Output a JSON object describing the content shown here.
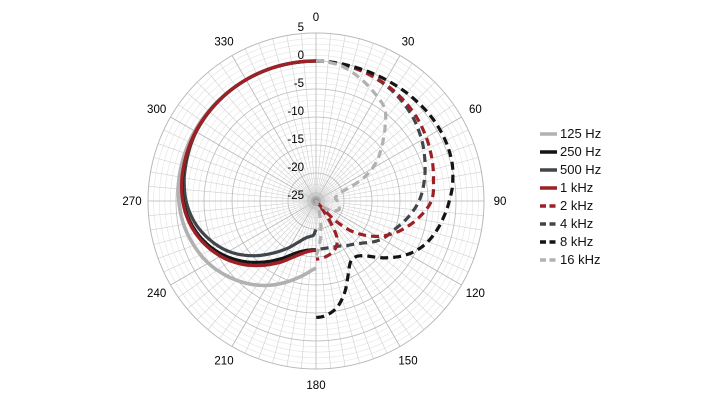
{
  "chart_data": {
    "type": "line",
    "subtype": "polar-pattern",
    "title": "",
    "orientation": {
      "zero_position": "top",
      "direction": "clockwise"
    },
    "angle_tick_labels": [
      "0",
      "30",
      "60",
      "90",
      "120",
      "150",
      "180",
      "210",
      "240",
      "270",
      "300",
      "330"
    ],
    "angle_tick_step_deg": 30,
    "minor_spoke_step_deg": 5,
    "radial_axis": {
      "unit": "dB",
      "tick_labels": [
        "5",
        "0",
        "-5",
        "-10",
        "-15",
        "-20",
        "-25"
      ],
      "outer_db": 5,
      "center_db": -25,
      "major_ring_step_db": 5,
      "minor_ring_step_db": 1
    },
    "legend_position": "right",
    "style": {
      "grid_minor_color": "#e4e4e4",
      "grid_major_color": "#b9b9b9",
      "spoke_color": "#cfcfcf",
      "spoke_major_color": "#b5b5b5",
      "label_color": "#000000",
      "background": "#ffffff"
    },
    "series": [
      {
        "name": "125 Hz",
        "color": "#b1b1b1",
        "line_style": "solid",
        "width": 3.6,
        "plotted_half": "left",
        "points": [
          [
            0,
            0
          ],
          [
            30,
            0
          ],
          [
            60,
            0
          ],
          [
            80,
            -0.2
          ],
          [
            90,
            -0.5
          ],
          [
            100,
            -1
          ],
          [
            110,
            -1.8
          ],
          [
            120,
            -2.8
          ],
          [
            130,
            -4.2
          ],
          [
            140,
            -5.8
          ],
          [
            150,
            -7.6
          ],
          [
            160,
            -9.6
          ],
          [
            170,
            -11.5
          ],
          [
            180,
            -13
          ]
        ]
      },
      {
        "name": "250 Hz",
        "color": "#141414",
        "line_style": "solid",
        "width": 3.2,
        "plotted_half": "left",
        "points": [
          [
            0,
            0
          ],
          [
            30,
            0
          ],
          [
            60,
            -0.2
          ],
          [
            80,
            -0.8
          ],
          [
            90,
            -1.3
          ],
          [
            100,
            -2.3
          ],
          [
            110,
            -3.8
          ],
          [
            120,
            -5.8
          ],
          [
            130,
            -8.2
          ],
          [
            140,
            -10.8
          ],
          [
            150,
            -13.2
          ],
          [
            158,
            -14.9
          ],
          [
            166,
            -15.8
          ],
          [
            173,
            -16.2
          ],
          [
            180,
            -16.3
          ]
        ]
      },
      {
        "name": "500 Hz",
        "color": "#41464b",
        "line_style": "solid",
        "width": 3.2,
        "plotted_half": "left",
        "points": [
          [
            0,
            0
          ],
          [
            30,
            0
          ],
          [
            60,
            -0.3
          ],
          [
            80,
            -1.1
          ],
          [
            90,
            -1.8
          ],
          [
            100,
            -3
          ],
          [
            110,
            -4.8
          ],
          [
            120,
            -7
          ],
          [
            130,
            -9.8
          ],
          [
            140,
            -12.8
          ],
          [
            150,
            -15.4
          ],
          [
            158,
            -17.2
          ],
          [
            165,
            -18.2
          ],
          [
            171,
            -18.6
          ],
          [
            176,
            -18.9
          ],
          [
            180,
            -19.9
          ]
        ]
      },
      {
        "name": "1 kHz",
        "color": "#9c2127",
        "line_style": "solid",
        "width": 3.4,
        "plotted_half": "left",
        "points": [
          [
            0,
            0
          ],
          [
            30,
            0
          ],
          [
            60,
            -0.2
          ],
          [
            80,
            -0.7
          ],
          [
            90,
            -1.2
          ],
          [
            100,
            -2.1
          ],
          [
            110,
            -3.5
          ],
          [
            120,
            -5.3
          ],
          [
            130,
            -7.5
          ],
          [
            140,
            -10
          ],
          [
            150,
            -12.4
          ],
          [
            158,
            -14.2
          ],
          [
            166,
            -15.4
          ],
          [
            173,
            -16
          ],
          [
            180,
            -16.2
          ]
        ]
      },
      {
        "name": "2 kHz",
        "color": "#9c2127",
        "line_style": "dashed",
        "width": 3.2,
        "plotted_half": "right",
        "points": [
          [
            0,
            0
          ],
          [
            20,
            -0.4
          ],
          [
            35,
            -0.9
          ],
          [
            50,
            -1.6
          ],
          [
            62,
            -2.4
          ],
          [
            72,
            -3.1
          ],
          [
            80,
            -3.7
          ],
          [
            90,
            -4.4
          ],
          [
            100,
            -6.6
          ],
          [
            110,
            -9.2
          ],
          [
            118,
            -11.6
          ],
          [
            125,
            -14.3
          ],
          [
            131,
            -17
          ],
          [
            136,
            -20.5
          ],
          [
            140,
            -24.5
          ],
          [
            144,
            -21.5
          ],
          [
            150,
            -17.5
          ],
          [
            158,
            -15.8
          ],
          [
            168,
            -15
          ],
          [
            180,
            -14.6
          ]
        ]
      },
      {
        "name": "4 kHz",
        "color": "#41464b",
        "line_style": "dashed",
        "width": 3.2,
        "plotted_half": "right",
        "points": [
          [
            0,
            0
          ],
          [
            20,
            -0.4
          ],
          [
            35,
            -1.1
          ],
          [
            50,
            -2.2
          ],
          [
            62,
            -3.4
          ],
          [
            72,
            -4.5
          ],
          [
            80,
            -5.4
          ],
          [
            90,
            -6.6
          ],
          [
            100,
            -8.3
          ],
          [
            110,
            -10.1
          ],
          [
            121,
            -11.6
          ],
          [
            134,
            -14.1
          ],
          [
            145,
            -15.3
          ],
          [
            152,
            -15.9
          ],
          [
            162,
            -16.3
          ],
          [
            170,
            -16.4
          ],
          [
            180,
            -16.4
          ]
        ]
      },
      {
        "name": "8 kHz",
        "color": "#141414",
        "line_style": "dashed",
        "width": 3.2,
        "plotted_half": "right",
        "points": [
          [
            0,
            0
          ],
          [
            15,
            -0.1
          ],
          [
            30,
            0
          ],
          [
            45,
            0.3
          ],
          [
            55,
            0.5
          ],
          [
            65,
            0.5
          ],
          [
            75,
            0.2
          ],
          [
            85,
            -0.6
          ],
          [
            90,
            -1.2
          ],
          [
            97,
            -2
          ],
          [
            105,
            -3
          ],
          [
            113,
            -4.3
          ],
          [
            121,
            -6.3
          ],
          [
            130,
            -9.2
          ],
          [
            138,
            -11.8
          ],
          [
            145,
            -12.8
          ],
          [
            151,
            -12.4
          ],
          [
            157,
            -10.4
          ],
          [
            163,
            -7.7
          ],
          [
            169,
            -5.6
          ],
          [
            175,
            -4.5
          ],
          [
            180,
            -4.2
          ]
        ]
      },
      {
        "name": "16 kHz",
        "color": "#b1b1b1",
        "line_style": "dashed",
        "width": 3.2,
        "plotted_half": "right",
        "points": [
          [
            0,
            0
          ],
          [
            10,
            -0.4
          ],
          [
            19,
            -1.6
          ],
          [
            28,
            -3
          ],
          [
            37,
            -4.5
          ],
          [
            44,
            -7.3
          ],
          [
            50,
            -9.6
          ],
          [
            56,
            -11.7
          ],
          [
            61,
            -13.8
          ],
          [
            65,
            -16
          ],
          [
            68,
            -18.5
          ],
          [
            71,
            -20.5
          ],
          [
            80,
            -21.5
          ],
          [
            90,
            -21.2
          ],
          [
            100,
            -21
          ],
          [
            110,
            -20.6
          ],
          [
            120,
            -21.5
          ],
          [
            130,
            -23.2
          ],
          [
            140,
            -25.5
          ],
          [
            150,
            -26.5
          ],
          [
            158,
            -25
          ],
          [
            165,
            -22.5
          ],
          [
            171,
            -19.5
          ],
          [
            176,
            -17
          ],
          [
            180,
            -15.3
          ]
        ]
      }
    ]
  }
}
